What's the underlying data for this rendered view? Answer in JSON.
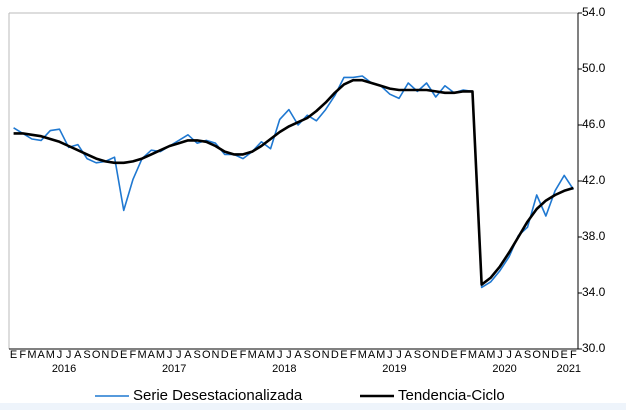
{
  "chart_data": {
    "type": "line",
    "categories": [
      "E",
      "F",
      "M",
      "A",
      "M",
      "J",
      "J",
      "A",
      "S",
      "O",
      "N",
      "D",
      "E",
      "F",
      "M",
      "A",
      "M",
      "J",
      "J",
      "A",
      "S",
      "O",
      "N",
      "D",
      "E",
      "F",
      "M",
      "A",
      "M",
      "J",
      "J",
      "A",
      "S",
      "O",
      "N",
      "D",
      "E",
      "F",
      "M",
      "A",
      "M",
      "J",
      "J",
      "A",
      "S",
      "O",
      "N",
      "D",
      "E",
      "F",
      "M",
      "A",
      "M",
      "J",
      "J",
      "A",
      "S",
      "O",
      "N",
      "D",
      "E",
      "F"
    ],
    "years": [
      "2016",
      "2017",
      "2018",
      "2019",
      "2020",
      "2021"
    ],
    "series": [
      {
        "name": "Serie Desestacionalizada",
        "color": "#1f78d1",
        "values": [
          45.8,
          45.4,
          45.0,
          44.9,
          45.6,
          45.7,
          44.4,
          44.6,
          43.6,
          43.3,
          43.4,
          43.7,
          39.9,
          42.1,
          43.6,
          44.2,
          44.1,
          44.5,
          44.9,
          45.3,
          44.7,
          44.9,
          44.7,
          43.9,
          43.9,
          43.6,
          44.1,
          44.8,
          44.3,
          46.4,
          47.1,
          46.0,
          46.7,
          46.3,
          47.1,
          48.1,
          49.4,
          49.4,
          49.5,
          49.0,
          48.8,
          48.2,
          47.9,
          49.0,
          48.4,
          49.0,
          48.0,
          48.8,
          48.3,
          48.5,
          48.4,
          34.4,
          34.8,
          35.6,
          36.6,
          38.1,
          38.7,
          41.0,
          39.5,
          41.3,
          42.4,
          41.4
        ]
      },
      {
        "name": "Tendencia-Ciclo",
        "color": "#000000",
        "values": [
          45.4,
          45.4,
          45.3,
          45.2,
          45.0,
          44.8,
          44.5,
          44.2,
          43.9,
          43.6,
          43.4,
          43.3,
          43.3,
          43.4,
          43.6,
          43.9,
          44.2,
          44.5,
          44.7,
          44.9,
          44.9,
          44.8,
          44.5,
          44.1,
          43.9,
          43.9,
          44.1,
          44.5,
          45.0,
          45.5,
          45.9,
          46.2,
          46.5,
          47.0,
          47.6,
          48.3,
          48.9,
          49.2,
          49.2,
          49.0,
          48.8,
          48.6,
          48.5,
          48.5,
          48.5,
          48.5,
          48.4,
          48.3,
          48.3,
          48.4,
          48.4,
          34.6,
          35.1,
          35.9,
          36.9,
          38.0,
          39.1,
          40.0,
          40.6,
          41.0,
          41.3,
          41.5
        ]
      }
    ],
    "ylim": [
      30,
      54
    ],
    "yticks": [
      {
        "value": 30,
        "label": "30.0"
      },
      {
        "value": 34,
        "label": "34.0"
      },
      {
        "value": 38,
        "label": "38.0"
      },
      {
        "value": 42,
        "label": "42.0"
      },
      {
        "value": 46,
        "label": "46.0"
      },
      {
        "value": 50,
        "label": "50.0"
      },
      {
        "value": 54,
        "label": "54.0"
      }
    ],
    "grid": false,
    "legend": "bottom"
  }
}
